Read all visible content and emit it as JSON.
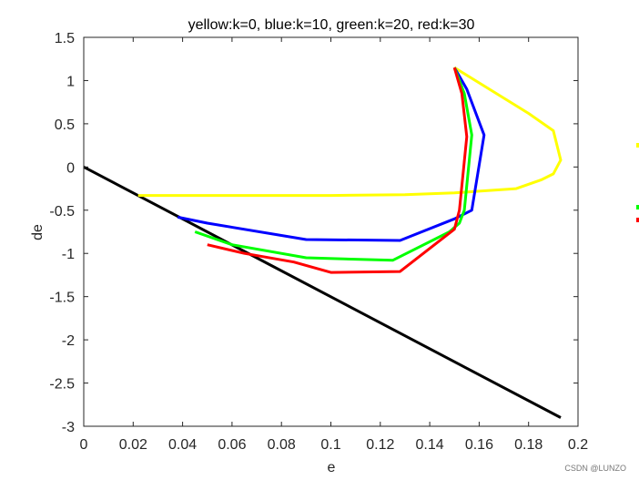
{
  "chart_data": {
    "type": "line",
    "title": "yellow:k=0, blue:k=10, green:k=20, red:k=30",
    "xlabel": "e",
    "ylabel": "de",
    "xlim": [
      0,
      0.2
    ],
    "ylim": [
      -3,
      1.5
    ],
    "xticks": [
      0,
      0.02,
      0.04,
      0.06,
      0.08,
      0.1,
      0.12,
      0.14,
      0.16,
      0.18,
      0.2
    ],
    "xtick_labels": [
      "0",
      "0.02",
      "0.04",
      "0.06",
      "0.08",
      "0.1",
      "0.12",
      "0.14",
      "0.16",
      "0.18",
      "0.2"
    ],
    "yticks": [
      -3,
      -2.5,
      -2,
      -1.5,
      -1,
      -0.5,
      0,
      0.5,
      1,
      1.5
    ],
    "ytick_labels": [
      "-3",
      "-2.5",
      "-2",
      "-1.5",
      "-1",
      "-0.5",
      "0",
      "0.5",
      "1",
      "1.5"
    ],
    "grid": false,
    "series": [
      {
        "color": "#000000",
        "x": [
          0,
          0.193
        ],
        "y": [
          0,
          -2.9
        ]
      },
      {
        "color": "#ffff00",
        "x": [
          0.15,
          0.18,
          0.19,
          0.193,
          0.19,
          0.185,
          0.175,
          0.16,
          0.15,
          0.13,
          0.1,
          0.06,
          0.03,
          0.022
        ],
        "y": [
          1.15,
          0.62,
          0.42,
          0.08,
          -0.08,
          -0.15,
          -0.25,
          -0.28,
          -0.3,
          -0.32,
          -0.33,
          -0.33,
          -0.33,
          -0.33
        ]
      },
      {
        "color": "#0000ff",
        "x": [
          0.15,
          0.155,
          0.162,
          0.157,
          0.15,
          0.128,
          0.09,
          0.05,
          0.038
        ],
        "y": [
          1.15,
          0.9,
          0.37,
          -0.5,
          -0.6,
          -0.85,
          -0.84,
          -0.65,
          -0.58
        ]
      },
      {
        "color": "#00ff00",
        "x": [
          0.15,
          0.154,
          0.157,
          0.154,
          0.152,
          0.148,
          0.125,
          0.09,
          0.06,
          0.045
        ],
        "y": [
          1.15,
          0.85,
          0.37,
          -0.5,
          -0.65,
          -0.75,
          -1.08,
          -1.05,
          -0.9,
          -0.75
        ]
      },
      {
        "color": "#ff0000",
        "x": [
          0.15,
          0.153,
          0.155,
          0.152,
          0.15,
          0.128,
          0.1,
          0.085,
          0.065,
          0.05
        ],
        "y": [
          1.15,
          0.85,
          0.35,
          -0.5,
          -0.72,
          -1.21,
          -1.22,
          -1.1,
          -1.0,
          -0.9
        ]
      }
    ]
  },
  "watermark": "CSDN @LUNZO",
  "colors": {
    "yellow": "#ffff00",
    "green": "#00ff00",
    "red": "#ff0000"
  }
}
